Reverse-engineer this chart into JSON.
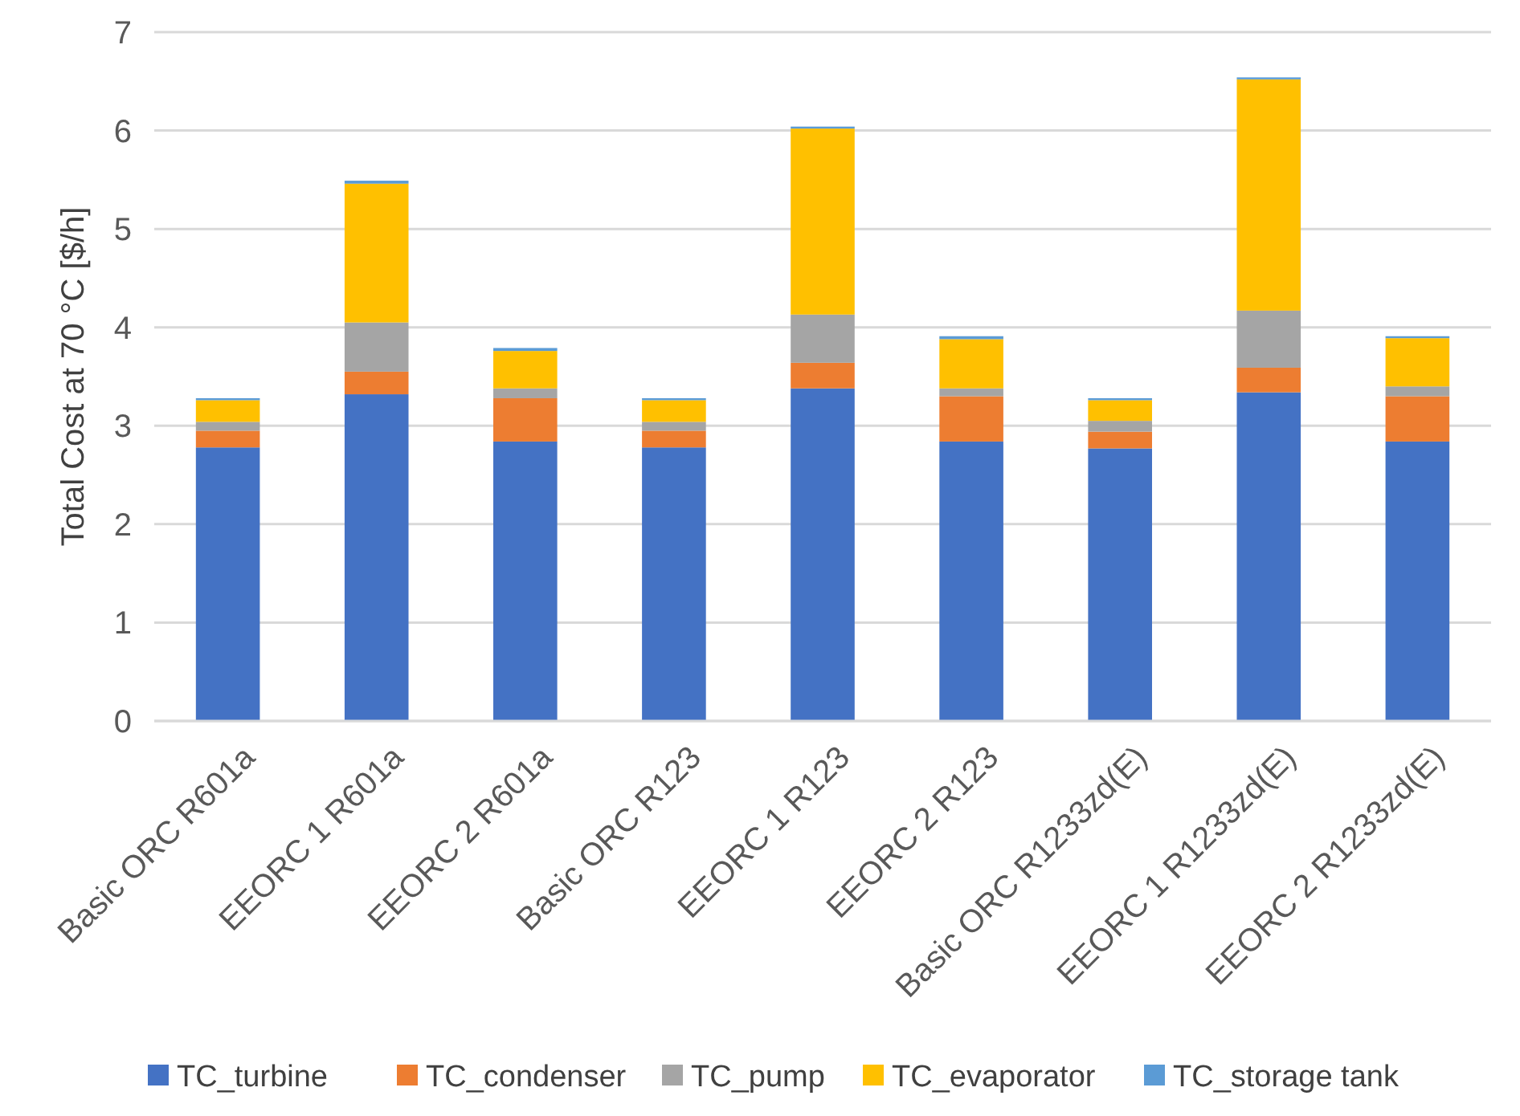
{
  "chart_data": {
    "type": "bar",
    "stacked": true,
    "ylabel": "Total Cost at 70 °C [$/h]",
    "categories": [
      "Basic ORC R601a",
      "EEORC 1 R601a",
      "EEORC 2 R601a",
      "Basic ORC R123",
      "EEORC 1 R123",
      "EEORC 2 R123",
      "Basic ORC R1233zd(E)",
      "EEORC 1 R1233zd(E)",
      "EEORC 2 R1233zd(E)"
    ],
    "series": [
      {
        "name": "TC_turbine",
        "color": "#4472c4",
        "values": [
          2.78,
          3.32,
          2.84,
          2.78,
          3.38,
          2.84,
          2.77,
          3.34,
          2.84
        ]
      },
      {
        "name": "TC_condenser",
        "color": "#ed7d31",
        "values": [
          0.17,
          0.23,
          0.44,
          0.17,
          0.26,
          0.46,
          0.17,
          0.25,
          0.46
        ]
      },
      {
        "name": "TC_pump",
        "color": "#a5a5a5",
        "values": [
          0.09,
          0.5,
          0.1,
          0.09,
          0.49,
          0.08,
          0.11,
          0.58,
          0.1
        ]
      },
      {
        "name": "TC_evaporator",
        "color": "#ffc000",
        "values": [
          0.22,
          1.41,
          0.38,
          0.22,
          1.89,
          0.5,
          0.21,
          2.35,
          0.49
        ]
      },
      {
        "name": "TC_storage tank",
        "color": "#5b9bd5",
        "values": [
          0.02,
          0.03,
          0.03,
          0.02,
          0.02,
          0.03,
          0.02,
          0.02,
          0.02
        ]
      }
    ],
    "ylim": [
      0,
      7
    ],
    "yticks": [
      0,
      1,
      2,
      3,
      4,
      5,
      6,
      7
    ],
    "grid": "y",
    "legend": "bottom"
  }
}
